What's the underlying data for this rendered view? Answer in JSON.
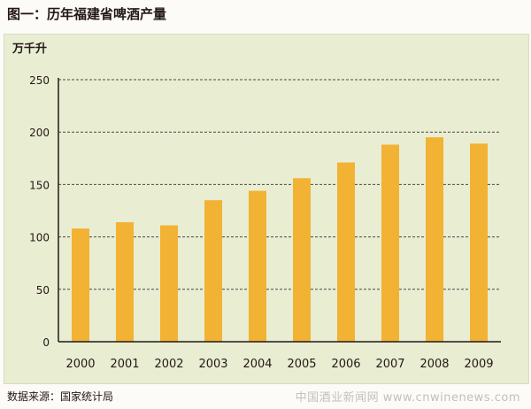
{
  "title": "图一：历年福建省啤酒产量",
  "source": "数据来源：国家统计局",
  "watermark": "中国酒业新闻网 www.cnwinenews.com",
  "colors": {
    "bar": "#f2b233",
    "grid": "#4a4a4a",
    "panel": "#e9edd2",
    "text": "#231816"
  },
  "chart_data": {
    "type": "bar",
    "title": "图一：历年福建省啤酒产量",
    "ylabel": "万千升",
    "xlabel": "",
    "categories": [
      "2000",
      "2001",
      "2002",
      "2003",
      "2004",
      "2005",
      "2006",
      "2007",
      "2008",
      "2009"
    ],
    "values": [
      108,
      114,
      111,
      135,
      144,
      156,
      171,
      188,
      195,
      189
    ],
    "ylim": [
      0,
      250
    ],
    "yticks": [
      0,
      50,
      100,
      150,
      200,
      250
    ],
    "grid": "horizontal dashed",
    "legend": "none"
  }
}
